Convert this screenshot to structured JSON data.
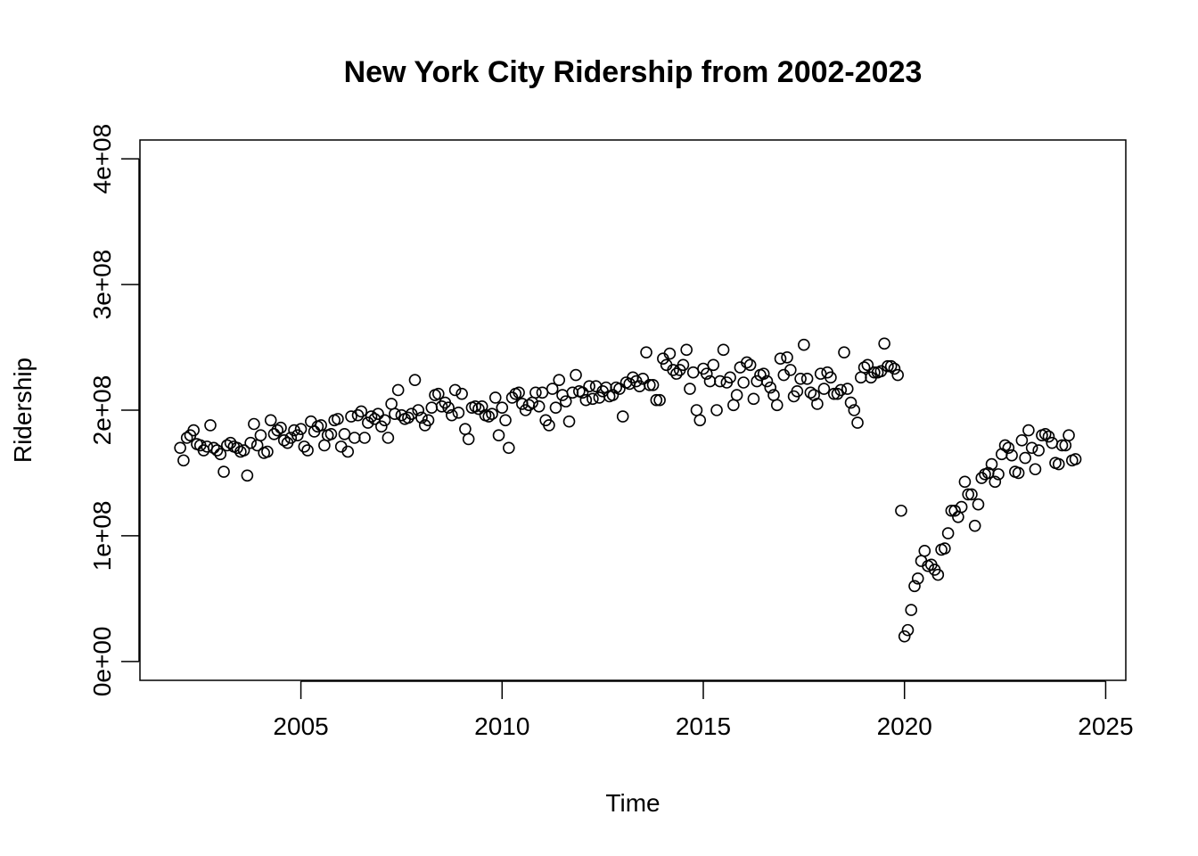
{
  "chart_data": {
    "type": "scatter",
    "title": "New York City Ridership from 2002-2023",
    "xlabel": "Time",
    "ylabel": "Ridership",
    "xlim": [
      2001.0,
      2025.5
    ],
    "ylim": [
      -15000000,
      415000000
    ],
    "x_ticks": [
      2005,
      2010,
      2015,
      2020,
      2025
    ],
    "x_tick_labels": [
      "2005",
      "2010",
      "2015",
      "2020",
      "2025"
    ],
    "y_ticks": [
      0,
      100000000,
      200000000,
      300000000,
      400000000
    ],
    "y_tick_labels": [
      "0e+00",
      "1e+08",
      "2e+08",
      "3e+08",
      "4e+08"
    ],
    "grid": false,
    "legend": "none",
    "start": 2002.0,
    "step": 0.0833333,
    "y": [
      170,
      160,
      178,
      180,
      184,
      173,
      172,
      168,
      171,
      188,
      170,
      168,
      165,
      151,
      172,
      174,
      171,
      170,
      167,
      168,
      148,
      174,
      189,
      172,
      180,
      166,
      167,
      192,
      181,
      184,
      186,
      176,
      174,
      178,
      184,
      180,
      185,
      171,
      168,
      191,
      183,
      187,
      188,
      172,
      180,
      181,
      192,
      193,
      171,
      181,
      167,
      195,
      178,
      196,
      199,
      178,
      190,
      195,
      193,
      197,
      187,
      192,
      178,
      205,
      197,
      216,
      196,
      193,
      194,
      197,
      224,
      200,
      194,
      188,
      192,
      202,
      212,
      213,
      203,
      206,
      202,
      196,
      216,
      198,
      213,
      185,
      177,
      202,
      203,
      201,
      203,
      196,
      195,
      197,
      210,
      180,
      202,
      192,
      170,
      210,
      213,
      214,
      205,
      200,
      204,
      206,
      214,
      203,
      214,
      192,
      188,
      217,
      202,
      224,
      212,
      207,
      191,
      214,
      228,
      215,
      214,
      208,
      219,
      209,
      219,
      210,
      215,
      218,
      211,
      212,
      218,
      217,
      195,
      222,
      221,
      226,
      223,
      219,
      225,
      246,
      220,
      220,
      208,
      208,
      241,
      236,
      245,
      232,
      229,
      232,
      236,
      248,
      217,
      230,
      200,
      192,
      233,
      229,
      223,
      236,
      200,
      223,
      248,
      222,
      226,
      204,
      212,
      234,
      222,
      238,
      236,
      209,
      223,
      228,
      229,
      223,
      218,
      212,
      204,
      241,
      228,
      242,
      232,
      211,
      215,
      225,
      252,
      225,
      214,
      212,
      205,
      229,
      217,
      230,
      226,
      213,
      213,
      216,
      246,
      217,
      206,
      200,
      190,
      226,
      234,
      236,
      226,
      230,
      230,
      231,
      253,
      235,
      235,
      233,
      228,
      120,
      20,
      25,
      41,
      60,
      66,
      80,
      88,
      76,
      77,
      73,
      69,
      89,
      90,
      102,
      120,
      120,
      115,
      123,
      143,
      133,
      133,
      108,
      125,
      146,
      149,
      150,
      157,
      143,
      149,
      165,
      172,
      170,
      164,
      151,
      150,
      176,
      162,
      184,
      170,
      153,
      168,
      180,
      181,
      179,
      174,
      158,
      157,
      172,
      172,
      180,
      160,
      161
    ],
    "y_unit_multiplier": 1000000
  }
}
